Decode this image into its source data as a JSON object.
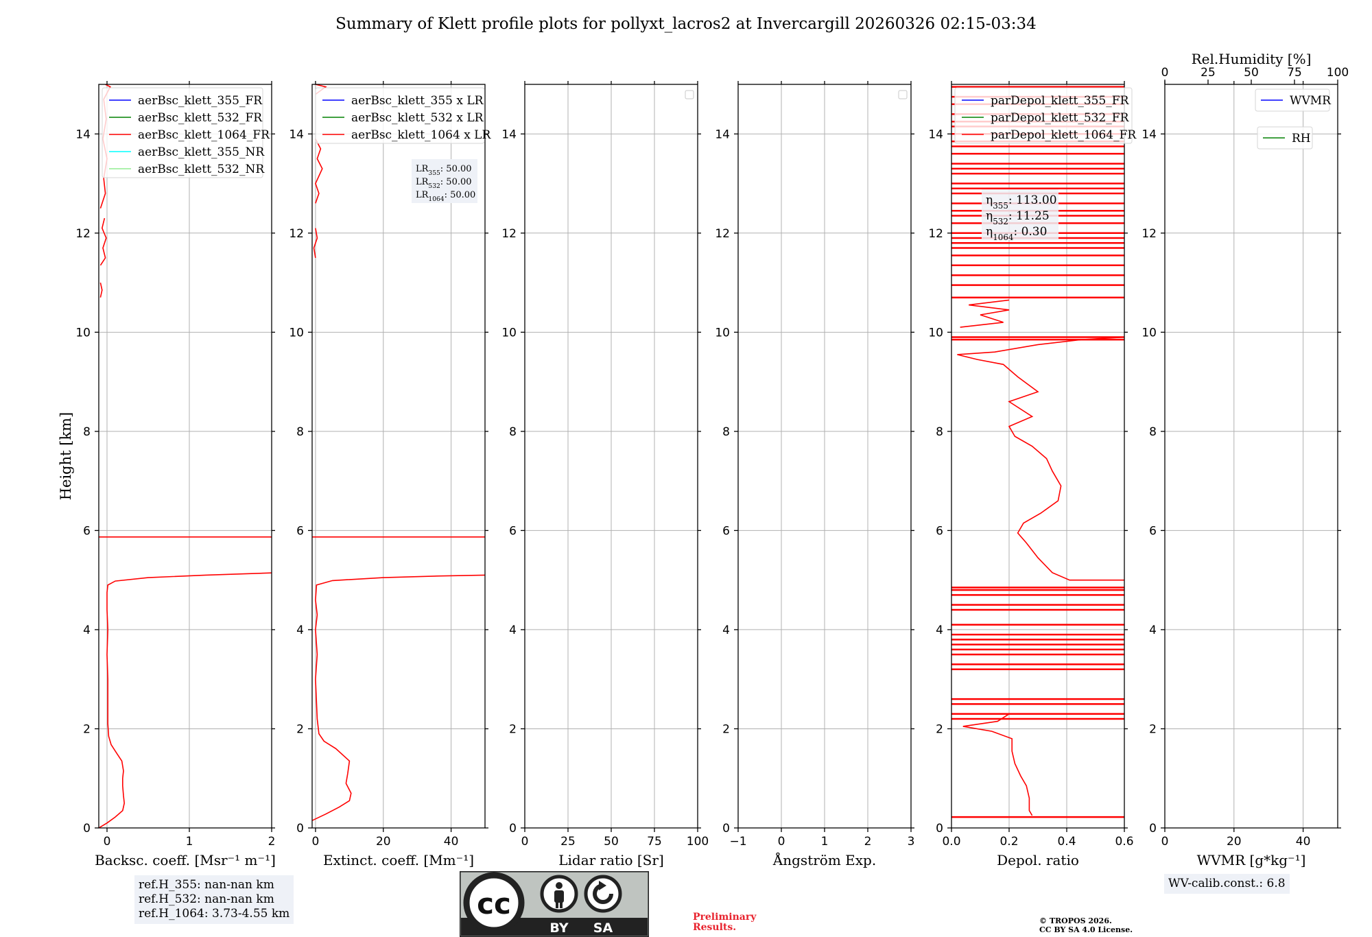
{
  "title": "Summary of Klett profile plots for pollyxt_lacros2 at Invercargill 20260326 02:15-03:34",
  "chart_data": [
    {
      "type": "line",
      "panel": "backscatter",
      "xlabel": "Backsc. coeff. [Msr⁻¹ m⁻¹]",
      "ylabel": "Height [km]",
      "xlim": [
        -0.1,
        2
      ],
      "ylim": [
        0,
        15
      ],
      "xticks": [
        0,
        1,
        2
      ],
      "yticks": [
        0,
        2,
        4,
        6,
        8,
        10,
        12,
        14
      ],
      "legend": [
        "aerBsc_klett_355_FR",
        "aerBsc_klett_532_FR",
        "aerBsc_klett_1064_FR",
        "aerBsc_klett_355_NR",
        "aerBsc_klett_532_NR"
      ],
      "series": [
        {
          "name": "aerBsc_klett_1064_FR",
          "color": "#ff0000",
          "points": [
            [
              -0.1,
              0.0
            ],
            [
              0.0,
              0.1
            ],
            [
              0.1,
              0.22
            ],
            [
              0.19,
              0.35
            ],
            [
              0.21,
              0.5
            ],
            [
              0.2,
              0.65
            ],
            [
              0.19,
              0.85
            ],
            [
              0.19,
              1.0
            ],
            [
              0.2,
              1.15
            ],
            [
              0.18,
              1.35
            ],
            [
              0.12,
              1.5
            ],
            [
              0.05,
              1.68
            ],
            [
              0.02,
              1.85
            ],
            [
              0.01,
              2.1
            ],
            [
              0.01,
              2.6
            ],
            [
              0.01,
              3.0
            ],
            [
              0.0,
              3.5
            ],
            [
              0.01,
              4.0
            ],
            [
              0.0,
              4.4
            ],
            [
              0.0,
              4.75
            ],
            [
              0.01,
              4.9
            ],
            [
              0.1,
              4.98
            ],
            [
              0.5,
              5.05
            ],
            [
              1.2,
              5.1
            ],
            [
              2.1,
              5.15
            ]
          ]
        },
        {
          "name": "aerBsc_klett_1064_FR",
          "color": "#ff0000",
          "points": [
            [
              -0.1,
              5.87
            ],
            [
              2.1,
              5.87
            ]
          ]
        },
        {
          "name": "aerBsc_klett_1064_FR",
          "color": "#ff0000",
          "points": [
            [
              -0.08,
              10.7
            ],
            [
              -0.06,
              10.85
            ],
            [
              -0.08,
              11.0
            ]
          ]
        },
        {
          "name": "aerBsc_klett_1064_FR",
          "color": "#ff0000",
          "points": [
            [
              -0.08,
              11.35
            ],
            [
              -0.02,
              11.5
            ],
            [
              -0.05,
              11.7
            ],
            [
              -0.01,
              11.9
            ],
            [
              -0.06,
              12.1
            ],
            [
              -0.03,
              12.3
            ]
          ]
        },
        {
          "name": "aerBsc_klett_1064_FR",
          "color": "#ff0000",
          "points": [
            [
              -0.08,
              12.5
            ],
            [
              -0.02,
              12.8
            ],
            [
              -0.04,
              13.1
            ],
            [
              0.0,
              13.5
            ],
            [
              -0.05,
              13.9
            ],
            [
              -0.01,
              14.3
            ],
            [
              -0.04,
              14.7
            ],
            [
              0.04,
              14.95
            ],
            [
              -0.02,
              15.0
            ]
          ]
        }
      ]
    },
    {
      "type": "line",
      "panel": "extinction",
      "xlabel": "Extinct. coeff. [Mm⁻¹]",
      "xlim": [
        -1,
        50
      ],
      "ylim": [
        0,
        15
      ],
      "xticks": [
        0,
        20,
        40
      ],
      "yticks": [
        0,
        2,
        4,
        6,
        8,
        10,
        12,
        14
      ],
      "legend": [
        "aerBsc_klett_355 x LR",
        "aerBsc_klett_532 x LR",
        "aerBsc_klett_1064 x LR"
      ],
      "lidar_ratio_labels": [
        "LR355: 50.00",
        "LR532: 50.00",
        "LR1064: 50.00"
      ],
      "series": [
        {
          "name": "aerBsc_klett_1064 x LR",
          "color": "#ff0000",
          "points": [
            [
              -1,
              0.15
            ],
            [
              3,
              0.28
            ],
            [
              7,
              0.42
            ],
            [
              10,
              0.55
            ],
            [
              10.5,
              0.7
            ],
            [
              9,
              0.9
            ],
            [
              9.5,
              1.1
            ],
            [
              10,
              1.35
            ],
            [
              6,
              1.6
            ],
            [
              2.5,
              1.75
            ],
            [
              1,
              1.9
            ],
            [
              0.5,
              2.2
            ],
            [
              0,
              3.0
            ],
            [
              0.5,
              3.5
            ],
            [
              0,
              4.0
            ],
            [
              0.5,
              4.3
            ],
            [
              0,
              4.6
            ],
            [
              0.3,
              4.9
            ],
            [
              5,
              4.99
            ],
            [
              20,
              5.05
            ],
            [
              35,
              5.08
            ],
            [
              50,
              5.1
            ]
          ]
        },
        {
          "name": "aerBsc_klett_1064 x LR",
          "color": "#ff0000",
          "points": [
            [
              -1,
              5.87
            ],
            [
              50,
              5.87
            ]
          ]
        },
        {
          "name": "aerBsc_klett_1064 x LR",
          "color": "#ff0000",
          "points": [
            [
              0,
              11.5
            ],
            [
              -0.5,
              11.7
            ],
            [
              0.5,
              11.9
            ],
            [
              0,
              12.1
            ]
          ]
        },
        {
          "name": "aerBsc_klett_1064 x LR",
          "color": "#ff0000",
          "points": [
            [
              0,
              12.6
            ],
            [
              1,
              12.8
            ],
            [
              0,
              13.0
            ],
            [
              2,
              13.3
            ],
            [
              0.5,
              13.5
            ],
            [
              1.5,
              13.7
            ],
            [
              0,
              13.9
            ]
          ]
        },
        {
          "name": "aerBsc_klett_1064 x LR",
          "color": "#ff0000",
          "points": [
            [
              0,
              14.8
            ],
            [
              3,
              14.95
            ],
            [
              0,
              15.0
            ]
          ]
        }
      ]
    },
    {
      "type": "line",
      "panel": "lidar_ratio",
      "xlabel": "Lidar ratio [Sr]",
      "xlim": [
        0,
        100
      ],
      "ylim": [
        0,
        15
      ],
      "xticks": [
        0,
        25,
        50,
        75,
        100
      ],
      "yticks": [
        0,
        2,
        4,
        6,
        8,
        10,
        12,
        14
      ],
      "legend": [],
      "series": []
    },
    {
      "type": "line",
      "panel": "angstrom",
      "xlabel": "Ångström Exp.",
      "xlim": [
        -1,
        3
      ],
      "ylim": [
        0,
        15
      ],
      "xticks": [
        -1,
        0,
        1,
        2,
        3
      ],
      "yticks": [
        0,
        2,
        4,
        6,
        8,
        10,
        12,
        14
      ],
      "legend": [],
      "series": []
    },
    {
      "type": "line",
      "panel": "depolarization",
      "xlabel": "Depol. ratio",
      "xlim": [
        0,
        0.6
      ],
      "ylim": [
        0,
        15
      ],
      "xticks": [
        0.0,
        0.2,
        0.4,
        0.6
      ],
      "xtick_labels": [
        "0.0",
        "0.2",
        "0.4",
        "0.6"
      ],
      "yticks": [
        0,
        2,
        4,
        6,
        8,
        10,
        12,
        14
      ],
      "legend": [
        "parDepol_klett_355_FR",
        "parDepol_klett_532_FR",
        "parDepol_klett_1064_FR"
      ],
      "eta_labels": [
        "η355: 113.00",
        "η532: 11.25",
        "η1064: 0.30"
      ],
      "spike_heights": [
        0.22,
        2.2,
        2.3,
        2.5,
        2.6,
        3.2,
        3.3,
        3.5,
        3.6,
        3.7,
        3.8,
        3.9,
        4.1,
        4.4,
        4.5,
        4.7,
        4.8,
        4.85,
        9.85,
        9.9,
        10.7,
        10.95,
        11.15,
        11.35,
        11.55,
        11.7,
        11.8,
        11.9,
        12.0,
        12.2,
        12.35,
        12.45,
        12.6,
        12.8,
        12.9,
        13.0,
        13.2,
        13.3,
        13.4,
        13.6,
        13.75,
        13.85,
        14.0,
        14.15,
        14.25,
        14.4,
        14.6,
        14.75,
        14.95
      ],
      "series": [
        {
          "name": "parDepol_klett_1064_FR",
          "color": "#ff0000",
          "points": [
            [
              0.28,
              0.25
            ],
            [
              0.27,
              0.35
            ],
            [
              0.27,
              0.6
            ],
            [
              0.26,
              0.85
            ],
            [
              0.24,
              1.05
            ],
            [
              0.22,
              1.3
            ],
            [
              0.21,
              1.55
            ],
            [
              0.21,
              1.8
            ],
            [
              0.14,
              1.95
            ],
            [
              0.04,
              2.05
            ],
            [
              0.16,
              2.15
            ],
            [
              0.2,
              2.3
            ]
          ]
        },
        {
          "name": "parDepol_klett_1064_FR",
          "color": "#ff0000",
          "points": [
            [
              0.6,
              5.0
            ],
            [
              0.41,
              5.0
            ],
            [
              0.35,
              5.15
            ],
            [
              0.3,
              5.45
            ],
            [
              0.26,
              5.75
            ],
            [
              0.23,
              5.95
            ],
            [
              0.25,
              6.15
            ],
            [
              0.31,
              6.35
            ],
            [
              0.37,
              6.6
            ],
            [
              0.38,
              6.9
            ],
            [
              0.35,
              7.2
            ],
            [
              0.33,
              7.45
            ],
            [
              0.28,
              7.7
            ],
            [
              0.22,
              7.9
            ],
            [
              0.2,
              8.1
            ],
            [
              0.28,
              8.3
            ],
            [
              0.2,
              8.6
            ],
            [
              0.3,
              8.8
            ],
            [
              0.23,
              9.1
            ],
            [
              0.18,
              9.35
            ],
            [
              0.09,
              9.45
            ],
            [
              0.02,
              9.55
            ],
            [
              0.15,
              9.6
            ],
            [
              0.3,
              9.75
            ],
            [
              0.45,
              9.85
            ],
            [
              0.6,
              9.9
            ]
          ]
        },
        {
          "name": "parDepol_klett_1064_FR",
          "color": "#ff0000",
          "points": [
            [
              0.03,
              10.1
            ],
            [
              0.18,
              10.2
            ],
            [
              0.1,
              10.35
            ],
            [
              0.2,
              10.45
            ],
            [
              0.06,
              10.55
            ],
            [
              0.2,
              10.65
            ]
          ]
        }
      ]
    },
    {
      "type": "line",
      "panel": "water_vapor",
      "xlabel": "WVMR [g*kg⁻¹]",
      "top_xlabel": "Rel.Humidity [%]",
      "xlim": [
        0,
        50
      ],
      "top_xlim": [
        0,
        100
      ],
      "ylim": [
        0,
        15
      ],
      "xticks": [
        0,
        20,
        40
      ],
      "top_xticks": [
        0,
        25,
        50,
        75,
        100
      ],
      "yticks": [
        0,
        2,
        4,
        6,
        8,
        10,
        12,
        14
      ],
      "legend": [
        "WVMR",
        "RH"
      ],
      "series": []
    }
  ],
  "notes": {
    "ref_h": [
      "ref.H_355: nan-nan km",
      "ref.H_532: nan-nan km",
      "ref.H_1064: 3.73-4.55 km"
    ],
    "wv_calib": "WV-calib.const.: 6.8",
    "preliminary": [
      "Preliminary",
      "Results."
    ],
    "copyright": [
      "© TROPOS 2026.",
      "CC BY SA 4.0 License."
    ],
    "cc_logo_text": [
      "cc",
      "BY",
      "SA"
    ]
  },
  "colors": {
    "red": "#ff0000",
    "blue": "#0000ff",
    "green": "#008000",
    "cyan": "#00ffff",
    "lightgreen": "#90ee90",
    "grid": "#b0b0b0"
  }
}
